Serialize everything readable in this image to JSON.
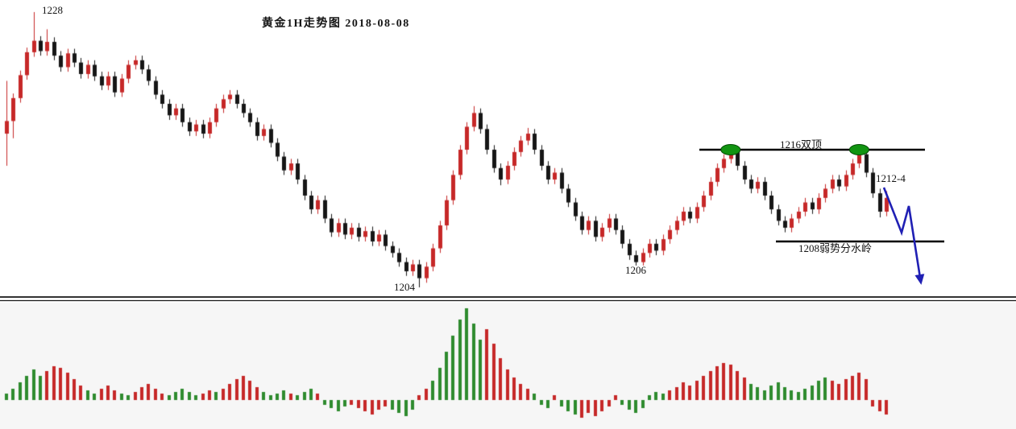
{
  "title": "黄金1H走势图 2018-08-08",
  "annotations": {
    "peak_label": "1228",
    "low_label": "1204",
    "secondary_low_label": "1206",
    "double_top_label": "1216双顶",
    "pullback_label": "1212-4",
    "watershed_label": "1208弱势分水岭",
    "double_top_marker_indices": [
      107,
      126
    ],
    "projection_arrow_points": [
      [
        1097,
        233
      ],
      [
        1119,
        289
      ],
      [
        1128,
        256
      ],
      [
        1142,
        345
      ]
    ]
  },
  "levels": [
    {
      "name": "double-top-resistance",
      "price": 1216,
      "label": "1216双顶"
    },
    {
      "name": "weak-watershed",
      "price": 1208,
      "label": "1208弱势分水岭"
    }
  ],
  "colors": {
    "bg": "#ffffff",
    "lower_pane_bg": "#f6f6f6",
    "bull": "#c62828",
    "bear": "#161616",
    "hist_red": "#c62828",
    "hist_green": "#2e8b2e",
    "marker": "#119411",
    "marker_edge": "#054d05",
    "arrow": "#2020b4",
    "line": "#000000",
    "separator": "#161616"
  },
  "chart_data": [
    {
      "type": "candlestick",
      "title": "黄金1H走势图 2018-08-08",
      "ylim": [
        1203.5,
        1228.5
      ],
      "key_prices": {
        "high": 1228,
        "low": 1204,
        "secondary_low": 1206,
        "double_top": 1216,
        "watershed": 1208,
        "pullback": "1212-4"
      },
      "ohlc": [
        [
          1217.4,
          1222.0,
          1214.6,
          1218.5
        ],
        [
          1218.5,
          1220.9,
          1217.0,
          1220.5
        ],
        [
          1220.5,
          1222.9,
          1220.1,
          1222.5
        ],
        [
          1222.5,
          1224.9,
          1222.1,
          1224.5
        ],
        [
          1224.5,
          1228.0,
          1224.1,
          1225.5
        ],
        [
          1225.5,
          1225.9,
          1224.2,
          1224.6
        ],
        [
          1224.6,
          1226.5,
          1224.2,
          1225.4
        ],
        [
          1225.4,
          1225.8,
          1223.8,
          1224.2
        ],
        [
          1224.2,
          1224.6,
          1222.8,
          1223.2
        ],
        [
          1223.2,
          1224.8,
          1222.8,
          1224.4
        ],
        [
          1224.4,
          1224.8,
          1223.2,
          1223.6
        ],
        [
          1223.6,
          1224.0,
          1222.2,
          1222.6
        ],
        [
          1222.6,
          1223.8,
          1222.2,
          1223.4
        ],
        [
          1223.4,
          1223.8,
          1222.0,
          1222.4
        ],
        [
          1222.4,
          1222.8,
          1221.2,
          1221.6
        ],
        [
          1221.6,
          1222.8,
          1221.2,
          1222.4
        ],
        [
          1222.4,
          1222.8,
          1220.6,
          1221.0
        ],
        [
          1221.0,
          1222.6,
          1220.6,
          1222.2
        ],
        [
          1222.2,
          1223.8,
          1221.8,
          1223.4
        ],
        [
          1223.4,
          1224.2,
          1223.0,
          1223.8
        ],
        [
          1223.8,
          1224.2,
          1222.6,
          1223.0
        ],
        [
          1223.0,
          1223.4,
          1221.6,
          1222.0
        ],
        [
          1222.0,
          1222.4,
          1220.4,
          1220.8
        ],
        [
          1220.8,
          1221.2,
          1219.6,
          1220.0
        ],
        [
          1220.0,
          1220.4,
          1218.6,
          1219.0
        ],
        [
          1219.0,
          1220.0,
          1218.6,
          1219.6
        ],
        [
          1219.6,
          1220.0,
          1218.0,
          1218.4
        ],
        [
          1218.4,
          1218.8,
          1217.2,
          1217.6
        ],
        [
          1217.6,
          1218.6,
          1217.2,
          1218.2
        ],
        [
          1218.2,
          1218.6,
          1217.0,
          1217.4
        ],
        [
          1217.4,
          1218.8,
          1217.0,
          1218.4
        ],
        [
          1218.4,
          1220.0,
          1218.0,
          1219.6
        ],
        [
          1219.6,
          1220.8,
          1219.2,
          1220.4
        ],
        [
          1220.4,
          1221.2,
          1220.0,
          1220.8
        ],
        [
          1220.8,
          1221.2,
          1219.6,
          1220.0
        ],
        [
          1220.0,
          1220.4,
          1218.8,
          1219.2
        ],
        [
          1219.2,
          1219.6,
          1218.0,
          1218.4
        ],
        [
          1218.4,
          1218.8,
          1216.8,
          1217.2
        ],
        [
          1217.2,
          1218.2,
          1216.8,
          1217.8
        ],
        [
          1217.8,
          1218.2,
          1216.2,
          1216.6
        ],
        [
          1216.6,
          1217.0,
          1215.0,
          1215.4
        ],
        [
          1215.4,
          1215.8,
          1213.8,
          1214.2
        ],
        [
          1214.2,
          1215.2,
          1213.8,
          1214.8
        ],
        [
          1214.8,
          1215.2,
          1213.0,
          1213.4
        ],
        [
          1213.4,
          1213.8,
          1211.6,
          1212.0
        ],
        [
          1212.0,
          1212.4,
          1210.4,
          1210.8
        ],
        [
          1210.8,
          1212.0,
          1210.4,
          1211.6
        ],
        [
          1211.6,
          1212.0,
          1209.6,
          1210.0
        ],
        [
          1210.0,
          1210.4,
          1208.4,
          1208.8
        ],
        [
          1208.8,
          1210.0,
          1208.4,
          1209.6
        ],
        [
          1209.6,
          1210.0,
          1208.2,
          1208.6
        ],
        [
          1208.6,
          1209.6,
          1208.2,
          1209.2
        ],
        [
          1209.2,
          1209.6,
          1208.0,
          1208.4
        ],
        [
          1208.4,
          1209.3,
          1208.0,
          1208.9
        ],
        [
          1208.9,
          1209.3,
          1207.6,
          1208.0
        ],
        [
          1208.0,
          1209.0,
          1207.6,
          1208.6
        ],
        [
          1208.6,
          1209.0,
          1207.2,
          1207.6
        ],
        [
          1207.6,
          1208.0,
          1206.6,
          1207.0
        ],
        [
          1207.0,
          1207.4,
          1205.8,
          1206.2
        ],
        [
          1206.2,
          1206.6,
          1205.0,
          1205.4
        ],
        [
          1205.4,
          1206.4,
          1205.0,
          1206.0
        ],
        [
          1206.0,
          1206.4,
          1204.0,
          1204.8
        ],
        [
          1204.8,
          1206.2,
          1204.4,
          1205.8
        ],
        [
          1205.8,
          1207.8,
          1205.4,
          1207.4
        ],
        [
          1207.4,
          1209.8,
          1207.0,
          1209.4
        ],
        [
          1209.4,
          1212.0,
          1209.0,
          1211.6
        ],
        [
          1211.6,
          1214.2,
          1211.2,
          1213.8
        ],
        [
          1213.8,
          1216.4,
          1213.4,
          1216.0
        ],
        [
          1216.0,
          1218.4,
          1215.6,
          1218.0
        ],
        [
          1218.0,
          1219.8,
          1217.6,
          1219.2
        ],
        [
          1219.2,
          1219.6,
          1217.4,
          1217.8
        ],
        [
          1217.8,
          1218.2,
          1215.6,
          1216.0
        ],
        [
          1216.0,
          1216.4,
          1214.0,
          1214.4
        ],
        [
          1214.4,
          1214.8,
          1212.9,
          1213.4
        ],
        [
          1213.4,
          1215.0,
          1213.0,
          1214.6
        ],
        [
          1214.6,
          1216.2,
          1214.2,
          1215.8
        ],
        [
          1215.8,
          1217.2,
          1215.4,
          1216.8
        ],
        [
          1216.8,
          1217.9,
          1216.4,
          1217.4
        ],
        [
          1217.4,
          1217.8,
          1215.6,
          1216.0
        ],
        [
          1216.0,
          1216.4,
          1214.2,
          1214.6
        ],
        [
          1214.6,
          1215.0,
          1213.0,
          1213.4
        ],
        [
          1213.4,
          1214.4,
          1213.0,
          1214.0
        ],
        [
          1214.0,
          1214.4,
          1212.2,
          1212.6
        ],
        [
          1212.6,
          1213.0,
          1211.0,
          1211.4
        ],
        [
          1211.4,
          1211.8,
          1209.8,
          1210.2
        ],
        [
          1210.2,
          1210.6,
          1208.6,
          1209.0
        ],
        [
          1209.0,
          1210.2,
          1208.6,
          1209.8
        ],
        [
          1209.8,
          1210.2,
          1208.0,
          1208.4
        ],
        [
          1208.4,
          1209.6,
          1208.0,
          1209.2
        ],
        [
          1209.2,
          1210.4,
          1208.8,
          1210.0
        ],
        [
          1210.0,
          1210.4,
          1208.6,
          1209.0
        ],
        [
          1209.0,
          1209.4,
          1207.4,
          1207.8
        ],
        [
          1207.8,
          1208.2,
          1206.4,
          1206.8
        ],
        [
          1206.8,
          1207.2,
          1205.9,
          1206.2
        ],
        [
          1206.2,
          1207.4,
          1205.9,
          1207.0
        ],
        [
          1207.0,
          1208.2,
          1206.6,
          1207.8
        ],
        [
          1207.8,
          1208.2,
          1206.8,
          1207.2
        ],
        [
          1207.2,
          1208.6,
          1206.8,
          1208.2
        ],
        [
          1208.2,
          1209.4,
          1207.8,
          1209.0
        ],
        [
          1209.0,
          1210.2,
          1208.6,
          1209.8
        ],
        [
          1209.8,
          1211.0,
          1209.4,
          1210.6
        ],
        [
          1210.6,
          1211.0,
          1209.6,
          1210.0
        ],
        [
          1210.0,
          1211.4,
          1209.6,
          1211.0
        ],
        [
          1211.0,
          1212.4,
          1210.6,
          1212.0
        ],
        [
          1212.0,
          1213.6,
          1211.6,
          1213.2
        ],
        [
          1213.2,
          1214.8,
          1212.8,
          1214.4
        ],
        [
          1214.4,
          1215.6,
          1214.0,
          1215.2
        ],
        [
          1215.2,
          1216.2,
          1214.8,
          1215.8
        ],
        [
          1215.8,
          1216.2,
          1214.2,
          1214.6
        ],
        [
          1214.6,
          1215.0,
          1213.0,
          1213.4
        ],
        [
          1213.4,
          1213.8,
          1212.2,
          1212.6
        ],
        [
          1212.6,
          1213.6,
          1212.2,
          1213.2
        ],
        [
          1213.2,
          1213.6,
          1211.6,
          1212.0
        ],
        [
          1212.0,
          1212.4,
          1210.4,
          1210.8
        ],
        [
          1210.8,
          1211.2,
          1209.4,
          1209.8
        ],
        [
          1209.8,
          1210.2,
          1208.8,
          1209.2
        ],
        [
          1209.2,
          1210.4,
          1208.8,
          1210.0
        ],
        [
          1210.0,
          1211.0,
          1209.6,
          1210.6
        ],
        [
          1210.6,
          1211.8,
          1210.2,
          1211.4
        ],
        [
          1211.4,
          1211.8,
          1210.4,
          1210.8
        ],
        [
          1210.8,
          1212.2,
          1210.4,
          1211.8
        ],
        [
          1211.8,
          1213.0,
          1211.4,
          1212.6
        ],
        [
          1212.6,
          1213.8,
          1212.2,
          1213.4
        ],
        [
          1213.4,
          1213.8,
          1212.4,
          1212.8
        ],
        [
          1212.8,
          1214.2,
          1212.4,
          1213.8
        ],
        [
          1213.8,
          1215.2,
          1213.4,
          1214.8
        ],
        [
          1214.8,
          1216.1,
          1214.4,
          1215.6
        ],
        [
          1215.6,
          1216.0,
          1213.6,
          1214.0
        ],
        [
          1214.0,
          1214.4,
          1211.8,
          1212.2
        ],
        [
          1212.2,
          1212.6,
          1210.1,
          1210.6
        ],
        [
          1210.6,
          1212.4,
          1210.2,
          1211.8
        ]
      ]
    },
    {
      "type": "bar",
      "name": "lower-momentum-histogram",
      "baseline": 0,
      "values": [
        8,
        14,
        22,
        30,
        38,
        30,
        36,
        42,
        40,
        34,
        26,
        18,
        12,
        8,
        14,
        18,
        12,
        8,
        6,
        10,
        16,
        20,
        14,
        8,
        6,
        10,
        14,
        10,
        6,
        8,
        12,
        10,
        14,
        20,
        26,
        30,
        24,
        16,
        10,
        6,
        8,
        12,
        8,
        6,
        10,
        14,
        8,
        -6,
        -10,
        -14,
        -8,
        -6,
        -10,
        -14,
        -18,
        -12,
        -8,
        -12,
        -16,
        -20,
        -12,
        6,
        14,
        24,
        40,
        60,
        80,
        100,
        114,
        95,
        75,
        88,
        70,
        52,
        38,
        28,
        20,
        14,
        8,
        -6,
        -10,
        6,
        -8,
        -14,
        -18,
        -22,
        -16,
        -20,
        -14,
        -8,
        6,
        -6,
        -12,
        -16,
        -10,
        6,
        10,
        8,
        12,
        16,
        22,
        18,
        24,
        30,
        36,
        42,
        46,
        44,
        36,
        28,
        20,
        16,
        12,
        18,
        22,
        16,
        12,
        10,
        14,
        18,
        24,
        28,
        24,
        20,
        26,
        30,
        34,
        26,
        -8,
        -14,
        -18
      ],
      "colors": "ggggggrrrrrrggrrrggrrrrrgggggrrgrrrrrrggggrgggrggggrrrrrrggggrrggggggggrrrrrrrgggrgggrrrrrrgggggggrrrrrrrrrrrrggggggggggggrrrrrrrrr"
    }
  ]
}
